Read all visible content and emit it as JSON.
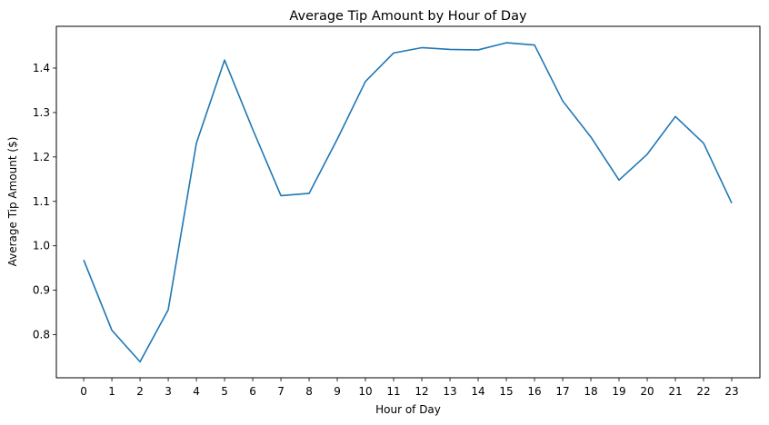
{
  "chart_data": {
    "type": "line",
    "title": "Average Tip Amount by Hour of Day",
    "xlabel": "Hour of Day",
    "ylabel": "Average Tip Amount ($)",
    "x": [
      0,
      1,
      2,
      3,
      4,
      5,
      6,
      7,
      8,
      9,
      10,
      11,
      12,
      13,
      14,
      15,
      16,
      17,
      18,
      19,
      20,
      21,
      22,
      23
    ],
    "x_ticks": [
      "0",
      "1",
      "2",
      "3",
      "4",
      "5",
      "6",
      "7",
      "8",
      "9",
      "10",
      "11",
      "12",
      "13",
      "14",
      "15",
      "16",
      "17",
      "18",
      "19",
      "20",
      "21",
      "22",
      "23"
    ],
    "series": [
      {
        "name": "",
        "values": [
          0.968,
          0.81,
          0.739,
          0.856,
          1.231,
          1.418,
          1.262,
          1.113,
          1.118,
          1.24,
          1.37,
          1.434,
          1.446,
          1.442,
          1.441,
          1.457,
          1.452,
          1.326,
          1.245,
          1.148,
          1.206,
          1.291,
          1.231,
          1.096
        ]
      }
    ],
    "y_ticks": [
      0.8,
      0.9,
      1.0,
      1.1,
      1.2,
      1.3,
      1.4
    ],
    "y_tick_labels": [
      "0.8",
      "0.9",
      "1.0",
      "1.1",
      "1.2",
      "1.3",
      "1.4"
    ],
    "xlim": [
      -0.97,
      24.0
    ],
    "ylim": [
      0.703,
      1.494
    ],
    "grid": false,
    "legend": "none",
    "line_color": "#1f77b4"
  }
}
